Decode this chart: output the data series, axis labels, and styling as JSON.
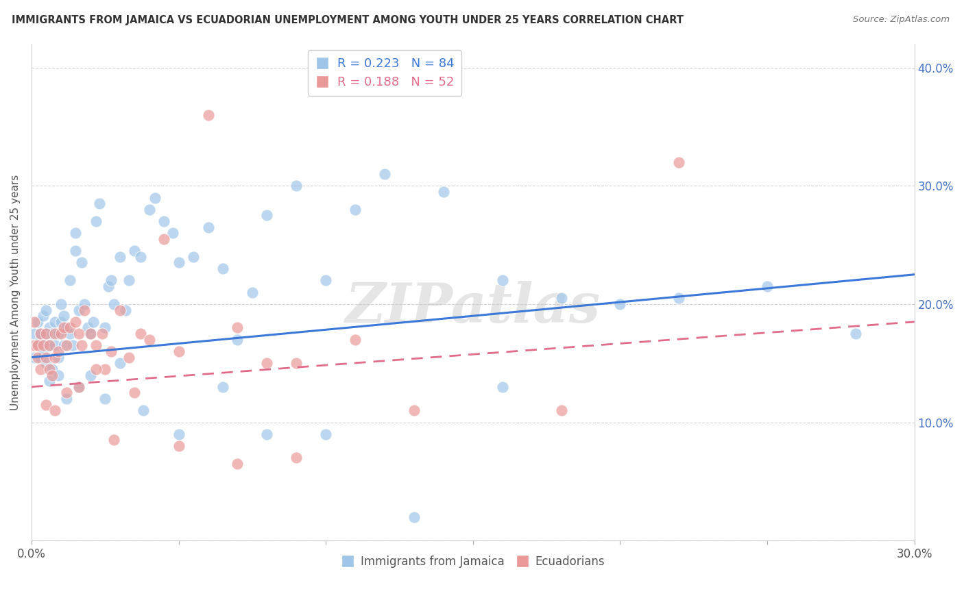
{
  "title": "IMMIGRANTS FROM JAMAICA VS ECUADORIAN UNEMPLOYMENT AMONG YOUTH UNDER 25 YEARS CORRELATION CHART",
  "source": "Source: ZipAtlas.com",
  "ylabel": "Unemployment Among Youth under 25 years",
  "xlim": [
    0.0,
    0.3
  ],
  "ylim": [
    0.0,
    0.42
  ],
  "ytick_positions": [
    0.0,
    0.1,
    0.2,
    0.3,
    0.4
  ],
  "ytick_labels": [
    "",
    "10.0%",
    "20.0%",
    "30.0%",
    "40.0%"
  ],
  "xtick_positions": [
    0.0,
    0.05,
    0.1,
    0.15,
    0.2,
    0.25,
    0.3
  ],
  "xtick_labels": [
    "0.0%",
    "",
    "",
    "",
    "",
    "",
    "30.0%"
  ],
  "color_jamaica": "#9fc5e8",
  "color_ecuador": "#ea9999",
  "color_jamaica_line": "#3c78d8",
  "color_ecuador_line": "#e06c8a",
  "watermark": "ZIPatlas",
  "jamaica_trend_start": 0.155,
  "jamaica_trend_end": 0.225,
  "ecuador_trend_start": 0.13,
  "ecuador_trend_end": 0.185,
  "background_color": "#ffffff",
  "grid_color": "#cccccc",
  "title_color": "#333333",
  "right_axis_color": "#4472c4",
  "jamaica_x": [
    0.001,
    0.001,
    0.002,
    0.002,
    0.003,
    0.003,
    0.003,
    0.004,
    0.004,
    0.005,
    0.005,
    0.005,
    0.006,
    0.006,
    0.007,
    0.007,
    0.008,
    0.008,
    0.009,
    0.009,
    0.01,
    0.01,
    0.011,
    0.011,
    0.012,
    0.013,
    0.013,
    0.014,
    0.015,
    0.015,
    0.016,
    0.017,
    0.018,
    0.019,
    0.02,
    0.021,
    0.022,
    0.023,
    0.025,
    0.026,
    0.027,
    0.028,
    0.03,
    0.032,
    0.033,
    0.035,
    0.037,
    0.04,
    0.042,
    0.045,
    0.048,
    0.05,
    0.055,
    0.06,
    0.065,
    0.07,
    0.075,
    0.08,
    0.09,
    0.1,
    0.11,
    0.12,
    0.14,
    0.16,
    0.18,
    0.2,
    0.22,
    0.25,
    0.28,
    0.006,
    0.009,
    0.012,
    0.016,
    0.02,
    0.025,
    0.03,
    0.038,
    0.05,
    0.065,
    0.08,
    0.1,
    0.13,
    0.16
  ],
  "jamaica_y": [
    0.155,
    0.175,
    0.165,
    0.185,
    0.17,
    0.155,
    0.175,
    0.16,
    0.19,
    0.15,
    0.175,
    0.195,
    0.165,
    0.18,
    0.145,
    0.175,
    0.185,
    0.165,
    0.155,
    0.175,
    0.185,
    0.2,
    0.19,
    0.165,
    0.18,
    0.22,
    0.175,
    0.165,
    0.245,
    0.26,
    0.195,
    0.235,
    0.2,
    0.18,
    0.175,
    0.185,
    0.27,
    0.285,
    0.18,
    0.215,
    0.22,
    0.2,
    0.24,
    0.195,
    0.22,
    0.245,
    0.24,
    0.28,
    0.29,
    0.27,
    0.26,
    0.235,
    0.24,
    0.265,
    0.23,
    0.17,
    0.21,
    0.275,
    0.3,
    0.22,
    0.28,
    0.31,
    0.295,
    0.22,
    0.205,
    0.2,
    0.205,
    0.215,
    0.175,
    0.135,
    0.14,
    0.12,
    0.13,
    0.14,
    0.12,
    0.15,
    0.11,
    0.09,
    0.13,
    0.09,
    0.09,
    0.02,
    0.13
  ],
  "ecuador_x": [
    0.001,
    0.001,
    0.002,
    0.002,
    0.003,
    0.003,
    0.004,
    0.005,
    0.005,
    0.006,
    0.006,
    0.007,
    0.008,
    0.008,
    0.009,
    0.01,
    0.011,
    0.012,
    0.013,
    0.015,
    0.016,
    0.017,
    0.018,
    0.02,
    0.022,
    0.024,
    0.025,
    0.027,
    0.03,
    0.033,
    0.037,
    0.04,
    0.045,
    0.05,
    0.06,
    0.07,
    0.08,
    0.09,
    0.11,
    0.13,
    0.005,
    0.008,
    0.012,
    0.016,
    0.022,
    0.028,
    0.035,
    0.05,
    0.07,
    0.09,
    0.18,
    0.22
  ],
  "ecuador_y": [
    0.165,
    0.185,
    0.155,
    0.165,
    0.175,
    0.145,
    0.165,
    0.155,
    0.175,
    0.145,
    0.165,
    0.14,
    0.155,
    0.175,
    0.16,
    0.175,
    0.18,
    0.165,
    0.18,
    0.185,
    0.175,
    0.165,
    0.195,
    0.175,
    0.165,
    0.175,
    0.145,
    0.16,
    0.195,
    0.155,
    0.175,
    0.17,
    0.255,
    0.16,
    0.36,
    0.18,
    0.15,
    0.15,
    0.17,
    0.11,
    0.115,
    0.11,
    0.125,
    0.13,
    0.145,
    0.085,
    0.125,
    0.08,
    0.065,
    0.07,
    0.11,
    0.32
  ]
}
